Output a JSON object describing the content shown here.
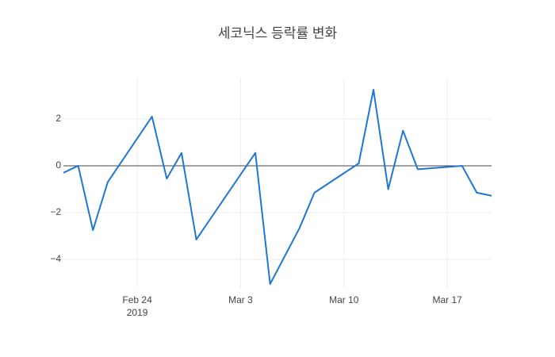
{
  "chart_data": {
    "type": "line",
    "title": "세코닉스 등락률 변화",
    "x": [
      "2019-02-19",
      "2019-02-20",
      "2019-02-21",
      "2019-02-22",
      "2019-02-25",
      "2019-02-26",
      "2019-02-27",
      "2019-02-28",
      "2019-03-04",
      "2019-03-05",
      "2019-03-07",
      "2019-03-08",
      "2019-03-11",
      "2019-03-12",
      "2019-03-13",
      "2019-03-14",
      "2019-03-15",
      "2019-03-18",
      "2019-03-19",
      "2019-03-20"
    ],
    "series": [
      {
        "color": "#1f77d4",
        "values": [
          -0.3,
          0.0,
          -2.75,
          -0.7,
          2.1,
          -0.55,
          0.55,
          -3.15,
          0.55,
          -5.05,
          -2.65,
          -1.15,
          0.1,
          3.25,
          -1.0,
          1.5,
          -0.15,
          0.0,
          -1.15,
          -1.28
        ]
      }
    ],
    "xlim": [
      "2019-02-19",
      "2019-03-20"
    ],
    "xticks": [
      {
        "value": "2019-02-24",
        "label": "Feb 24"
      },
      {
        "value": "2019-03-03",
        "label": "Mar 3"
      },
      {
        "value": "2019-03-10",
        "label": "Mar 10"
      },
      {
        "value": "2019-03-17",
        "label": "Mar 17"
      }
    ],
    "x_year_label": "2019",
    "ylim": [
      -5.22,
      3.76
    ],
    "yticks": [
      {
        "value": 2,
        "label": "2"
      },
      0,
      {
        "value": -2,
        "label": "−2"
      },
      {
        "value": -4,
        "label": "−4"
      }
    ],
    "grid": true
  }
}
